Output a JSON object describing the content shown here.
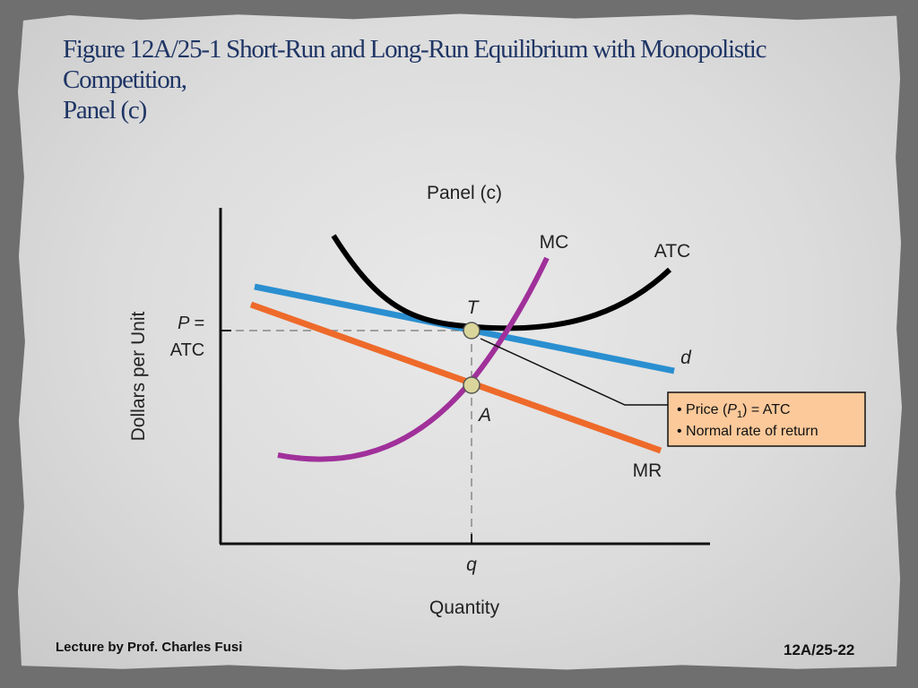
{
  "slide": {
    "title_line1": "Figure 12A/25-1  Short-Run and Long-Run Equilibrium with Monopolistic",
    "title_line2": "Competition,",
    "title_line3": "Panel (c)",
    "footer_left": "Lecture by Prof. Charles Fusi",
    "footer_right": "12A/25-22"
  },
  "chart_data": {
    "type": "line",
    "title": "Panel (c)",
    "xlabel": "Quantity",
    "ylabel": "Dollars per Unit",
    "x_tick_label": "q",
    "y_tick_label_line1": "P =",
    "y_tick_label_line2": "ATC",
    "grid": false,
    "series": [
      {
        "name": "MC",
        "color": "#a0309a"
      },
      {
        "name": "ATC",
        "color": "#000000"
      },
      {
        "name": "d",
        "color": "#2a8fd0"
      },
      {
        "name": "MR",
        "color": "#ee6a2a"
      }
    ],
    "points": [
      {
        "label": "T",
        "on": "ATC and d"
      },
      {
        "label": "A",
        "on": "MC and MR"
      }
    ],
    "callout": {
      "line1_pre": "• Price (",
      "line1_var": "P",
      "line1_sub": "1",
      "line1_post": ") = ATC",
      "line2": "• Normal rate of return",
      "background": "#fbc99a"
    }
  }
}
